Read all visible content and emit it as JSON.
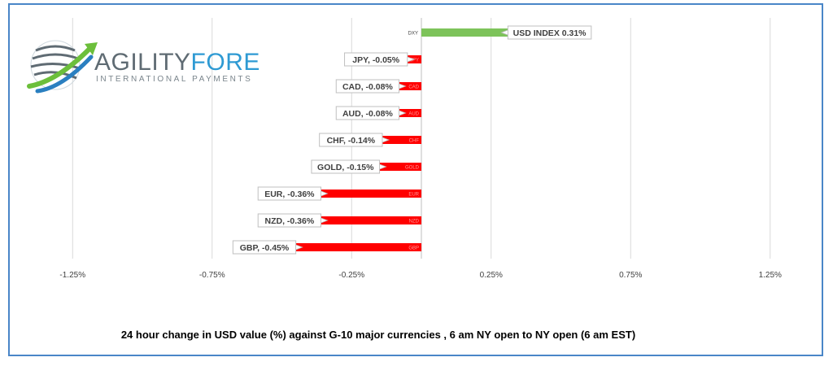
{
  "brand": {
    "name_part1": "AGILITY",
    "name_part2": "FOREX",
    "tagline": "INTERNATIONAL PAYMENTS",
    "color_part1": "#5f6b73",
    "color_part2": "#2e9ad3",
    "swoosh_green": "#6cbf3b",
    "swoosh_blue": "#2a7fc0"
  },
  "caption": "24 hour change in  USD value (%)  against  G-10 major currencies , 6 am NY open to NY open  (6 am EST)",
  "chart_data": {
    "type": "bar",
    "orientation": "horizontal",
    "categories": [
      "DXY",
      "JPY",
      "CAD",
      "AUD",
      "CHF",
      "GOLD",
      "EUR",
      "NZD",
      "GBP"
    ],
    "values": [
      0.31,
      -0.05,
      -0.08,
      -0.08,
      -0.14,
      -0.15,
      -0.36,
      -0.36,
      -0.45
    ],
    "data_labels": [
      "USD INDEX 0.31%",
      "JPY, -0.05%",
      "CAD, -0.08%",
      "AUD, -0.08%",
      "CHF, -0.14%",
      "GOLD, -0.15%",
      "EUR, -0.36%",
      "NZD, -0.36%",
      "GBP, -0.45%"
    ],
    "xlim": [
      -1.5,
      1.5
    ],
    "x_ticks": [
      -1.25,
      -0.75,
      -0.25,
      0.25,
      0.75,
      1.25
    ],
    "x_tick_labels": [
      "-1.25%",
      "-0.75%",
      "-0.25%",
      "0.25%",
      "0.75%",
      "1.25%"
    ],
    "grid": "vertical",
    "positive_color": "#7dc35a",
    "negative_color": "#ff0000"
  }
}
